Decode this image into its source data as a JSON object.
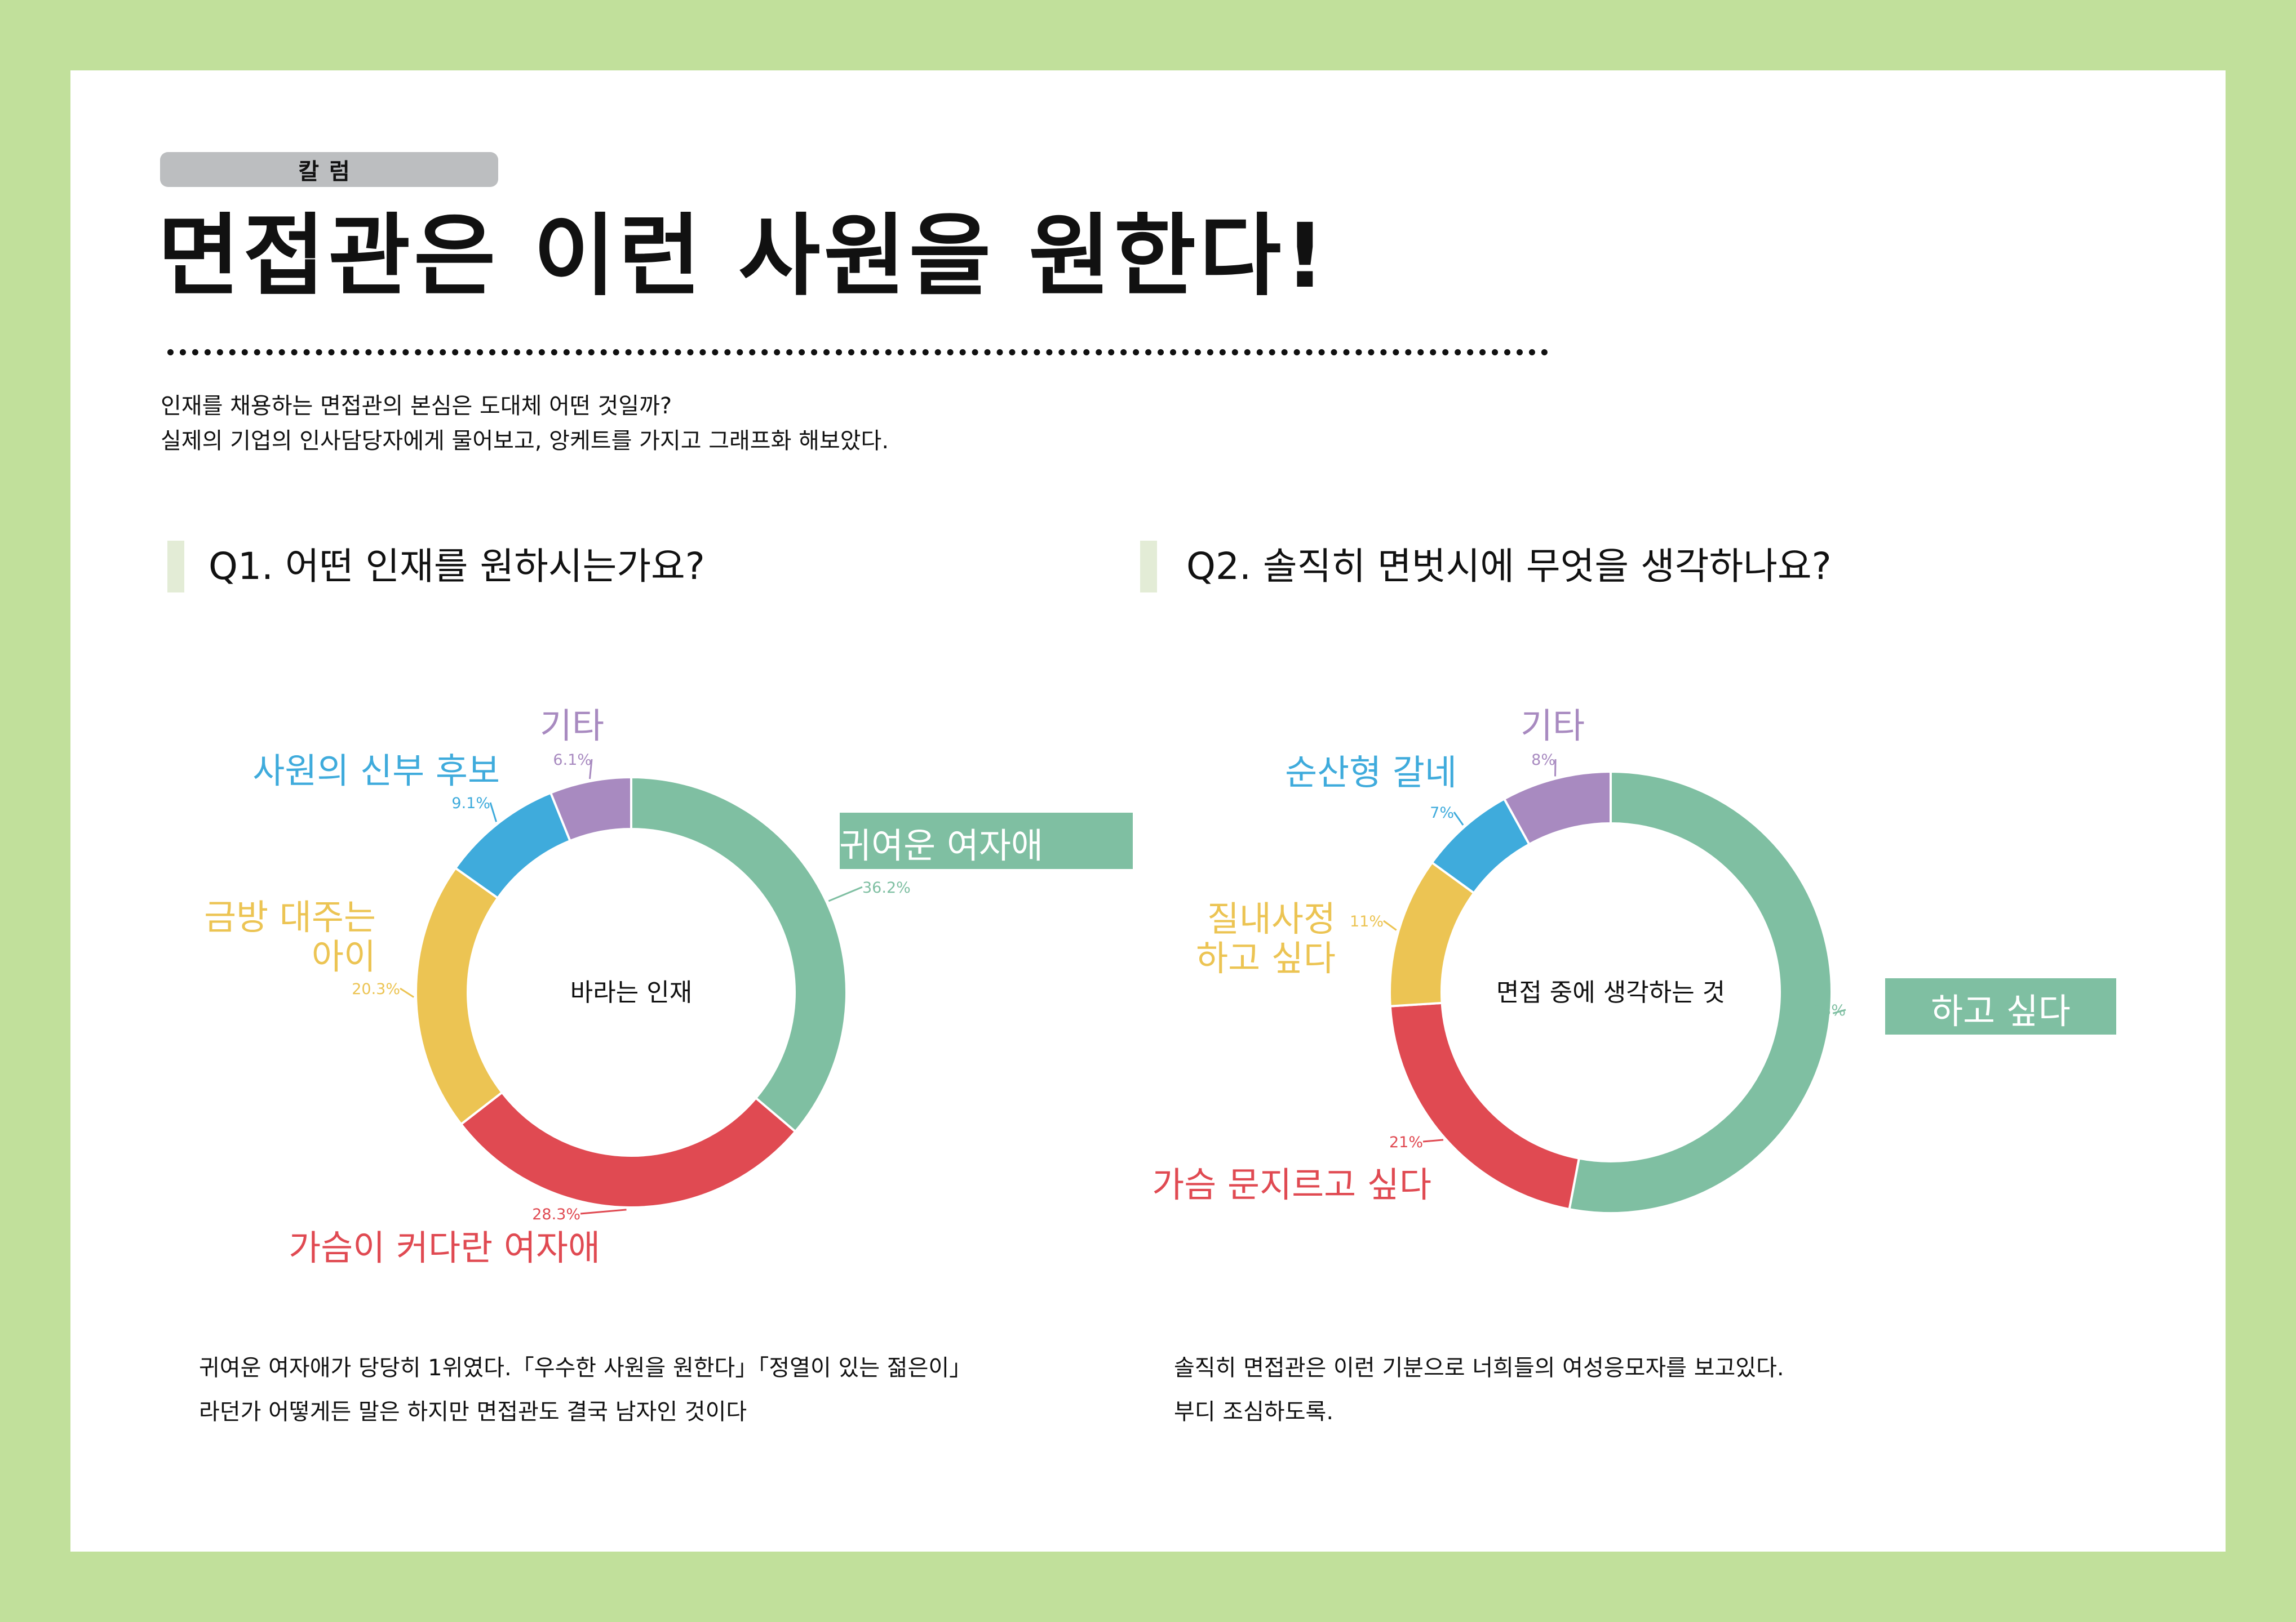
{
  "header": {
    "badge": "칼럼",
    "title": "면접관은 이런 사원을 원한다!",
    "intro_line1": "인재를 채용하는 면접관의 본심은 도대체 어떤 것일까?",
    "intro_line2": "실제의 기업의 인사담당자에게 물어보고, 앙케트를 가지고 그래프화 해보았다."
  },
  "q1": {
    "question": "Q1. 어떤 인재를 원하시는가요?",
    "note_line1": "귀여운 여자애가 당당히 1위였다.「우수한 사원을 원한다」「정열이 있는 젊은이」",
    "note_line2": "라던가 어떻게든 말은 하지만 면접관도 결국 남자인 것이다"
  },
  "q2": {
    "question": "Q2. 솔직히 면벗시에 무엇을 생각하나요?",
    "note_line1": "솔직히 면접관은 이런 기분으로 너희들의 여성응모자를 보고있다.",
    "note_line2": "부디 조심하도록."
  },
  "colors": {
    "frame": "#c1e09b",
    "green": "#7fbfa2",
    "red": "#e04a52",
    "yellow": "#ecc453",
    "blue": "#3fabdc",
    "purple": "#a88ac0",
    "badge": "#bcbec0",
    "qbar": "#e3ecd6"
  },
  "chart_data": [
    {
      "type": "pie",
      "donut": true,
      "title": "바라는 인재",
      "slices": [
        {
          "label": "귀여운 여자애",
          "value": 36.2,
          "value_label": "36.2%",
          "color": "#7fbfa2",
          "highlighted": true
        },
        {
          "label": "가슴이 커다란 여자애",
          "value": 28.3,
          "value_label": "28.3%",
          "color": "#e04a52"
        },
        {
          "label": "금방 대주는\n아이",
          "value": 20.3,
          "value_label": "20.3%",
          "color": "#ecc453"
        },
        {
          "label": "사원의 신부 후보",
          "value": 9.1,
          "value_label": "9.1%",
          "color": "#3fabdc"
        },
        {
          "label": "기타",
          "value": 6.1,
          "value_label": "6.1%",
          "color": "#a88ac0"
        }
      ]
    },
    {
      "type": "pie",
      "donut": true,
      "title": "면접 중에 생각하는 것",
      "slices": [
        {
          "label": "하고 싶다",
          "value": 53,
          "value_label": "53%",
          "color": "#7fbfa2",
          "highlighted": true
        },
        {
          "label": "가슴 문지르고 싶다",
          "value": 21,
          "value_label": "21%",
          "color": "#e04a52"
        },
        {
          "label": "질내사정\n하고 싶다",
          "value": 11,
          "value_label": "11%",
          "color": "#ecc453"
        },
        {
          "label": "순산형 갈네",
          "value": 7,
          "value_label": "7%",
          "color": "#3fabdc"
        },
        {
          "label": "기타",
          "value": 8,
          "value_label": "8%",
          "color": "#a88ac0"
        }
      ]
    }
  ]
}
